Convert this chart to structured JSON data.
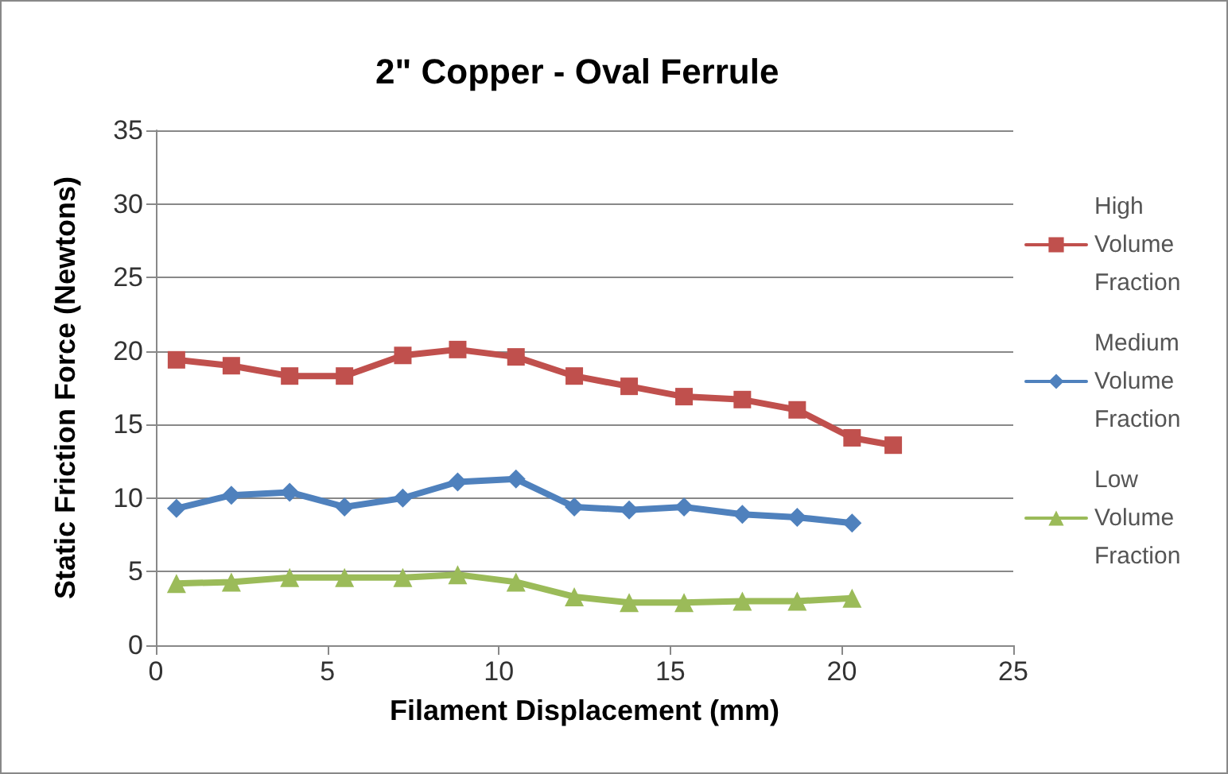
{
  "chart_data": {
    "type": "line",
    "title": "2\" Copper - Oval Ferrule",
    "xlabel": "Filament Displacement (mm)",
    "ylabel": "Static Friction Force (Newtons)",
    "xlim": [
      0,
      25
    ],
    "xticks": [
      0,
      5,
      10,
      15,
      20,
      25
    ],
    "ylim": [
      0,
      35
    ],
    "yticks": [
      0,
      5,
      10,
      15,
      20,
      25,
      30,
      35
    ],
    "grid": "y",
    "legend": "right",
    "series": [
      {
        "name": "High Volume Fraction",
        "color": "#c0504d",
        "marker": "square",
        "x": [
          0.6,
          2.2,
          3.9,
          5.5,
          7.2,
          8.8,
          10.5,
          12.2,
          13.8,
          15.4,
          17.1,
          18.7,
          20.3,
          21.5
        ],
        "values": [
          19.4,
          19.0,
          18.3,
          18.3,
          19.7,
          20.1,
          19.6,
          18.3,
          17.6,
          16.9,
          16.7,
          16.0,
          14.1,
          13.6
        ]
      },
      {
        "name": "Medium Volume Fraction",
        "color": "#4f81bd",
        "marker": "diamond",
        "x": [
          0.6,
          2.2,
          3.9,
          5.5,
          7.2,
          8.8,
          10.5,
          12.2,
          13.8,
          15.4,
          17.1,
          18.7,
          20.3
        ],
        "values": [
          9.3,
          10.2,
          10.4,
          9.4,
          10.0,
          11.1,
          11.3,
          9.4,
          9.2,
          9.4,
          8.9,
          8.7,
          8.3
        ]
      },
      {
        "name": "Low Volume Fraction",
        "color": "#9bbb59",
        "marker": "triangle",
        "x": [
          0.6,
          2.2,
          3.9,
          5.5,
          7.2,
          8.8,
          10.5,
          12.2,
          13.8,
          15.4,
          17.1,
          18.7,
          20.3
        ],
        "values": [
          4.2,
          4.3,
          4.6,
          4.6,
          4.6,
          4.8,
          4.3,
          3.3,
          2.9,
          2.9,
          3.0,
          3.0,
          3.2
        ]
      }
    ]
  }
}
